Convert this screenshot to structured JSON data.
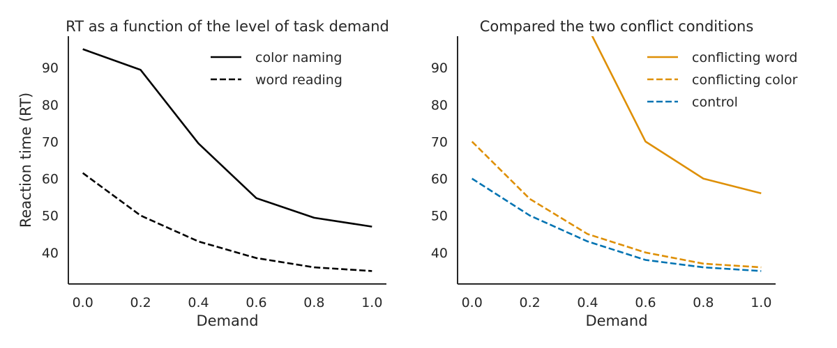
{
  "chart_data": [
    {
      "type": "line",
      "title": "RT as a function of the level of task demand",
      "xlabel": "Demand",
      "ylabel": "Reaction time (RT)",
      "x": [
        0.0,
        0.2,
        0.4,
        0.6,
        0.8,
        1.0
      ],
      "xticks": [
        "0.0",
        "0.2",
        "0.4",
        "0.6",
        "0.8",
        "1.0"
      ],
      "yticks": [
        "40",
        "50",
        "60",
        "70",
        "80",
        "90"
      ],
      "xlim": [
        -0.05,
        1.05
      ],
      "ylim": [
        31.5,
        98.5
      ],
      "grid": false,
      "legend_position": "top-right",
      "series": [
        {
          "name": "color naming",
          "color": "#000000",
          "dash": "solid",
          "values": [
            95,
            89.4,
            69.5,
            54.7,
            49.4,
            47
          ]
        },
        {
          "name": "word reading",
          "color": "#000000",
          "dash": "dashed",
          "values": [
            61.5,
            50,
            43,
            38.5,
            36,
            35
          ]
        }
      ]
    },
    {
      "type": "line",
      "title": "Compared the two conflict conditions",
      "xlabel": "Demand",
      "ylabel": "",
      "x": [
        0.0,
        0.2,
        0.4,
        0.6,
        0.8,
        1.0
      ],
      "xticks": [
        "0.0",
        "0.2",
        "0.4",
        "0.6",
        "0.8",
        "1.0"
      ],
      "yticks": [
        "40",
        "50",
        "60",
        "70",
        "80",
        "90"
      ],
      "xlim": [
        -0.05,
        1.05
      ],
      "ylim": [
        31.5,
        98.5
      ],
      "grid": false,
      "legend_position": "top-right",
      "series": [
        {
          "name": "conflicting word",
          "color": "#de8f05",
          "dash": "solid",
          "values": [
            null,
            null,
            101,
            70,
            60,
            56
          ]
        },
        {
          "name": "conflicting color",
          "color": "#de8f05",
          "dash": "dashed",
          "values": [
            70,
            54.5,
            45,
            40,
            37,
            36
          ]
        },
        {
          "name": "control",
          "color": "#0173b2",
          "dash": "dashed",
          "values": [
            60,
            50,
            43,
            38,
            36,
            35
          ]
        }
      ]
    }
  ]
}
